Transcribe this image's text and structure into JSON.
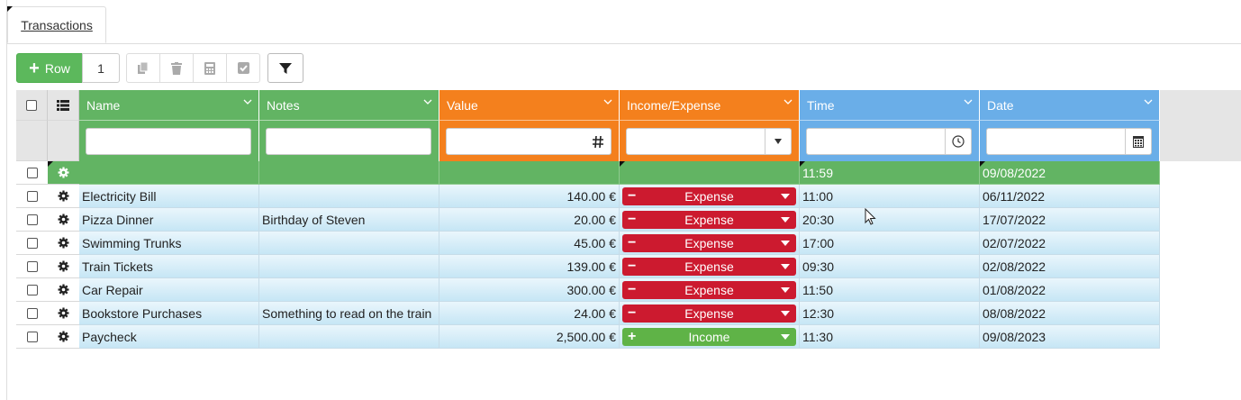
{
  "tabs": [
    {
      "label": "Transactions"
    }
  ],
  "toolbar": {
    "add_row_label": "Row",
    "row_count": "1",
    "icons": [
      "copy-icon",
      "trash-icon",
      "calculator-icon",
      "check-square-icon",
      "filter-icon"
    ]
  },
  "columns": [
    {
      "key": "name",
      "label": "Name",
      "color": "#62b463"
    },
    {
      "key": "notes",
      "label": "Notes",
      "color": "#62b463"
    },
    {
      "key": "value",
      "label": "Value",
      "color": "#f4801d"
    },
    {
      "key": "type",
      "label": "Income/Expense",
      "color": "#f4801d"
    },
    {
      "key": "time",
      "label": "Time",
      "color": "#6aaee8"
    },
    {
      "key": "date",
      "label": "Date",
      "color": "#6aaee8"
    }
  ],
  "filters": {
    "name": "",
    "notes": "",
    "value": "",
    "type": "",
    "time": "",
    "date": ""
  },
  "new_row": {
    "name": "",
    "notes": "",
    "value": "",
    "type": "",
    "time": "11:59",
    "date": "09/08/2022"
  },
  "rows": [
    {
      "name": "Electricity Bill",
      "notes": "",
      "value": "140.00 €",
      "type": "Expense",
      "time": "11:00",
      "date": "06/11/2022"
    },
    {
      "name": "Pizza Dinner",
      "notes": "Birthday of Steven",
      "value": "20.00 €",
      "type": "Expense",
      "time": "20:30",
      "date": "17/07/2022"
    },
    {
      "name": "Swimming Trunks",
      "notes": "",
      "value": "45.00 €",
      "type": "Expense",
      "time": "17:00",
      "date": "02/07/2022"
    },
    {
      "name": "Train Tickets",
      "notes": "",
      "value": "139.00 €",
      "type": "Expense",
      "time": "09:30",
      "date": "02/08/2022"
    },
    {
      "name": "Car Repair",
      "notes": "",
      "value": "300.00 €",
      "type": "Expense",
      "time": "11:50",
      "date": "01/08/2022"
    },
    {
      "name": "Bookstore Purchases",
      "notes": "Something to read on the train",
      "value": "24.00 €",
      "type": "Expense",
      "time": "12:30",
      "date": "08/08/2022"
    },
    {
      "name": "Paycheck",
      "notes": "",
      "value": "2,500.00 €",
      "type": "Income",
      "time": "11:30",
      "date": "09/08/2023"
    }
  ]
}
